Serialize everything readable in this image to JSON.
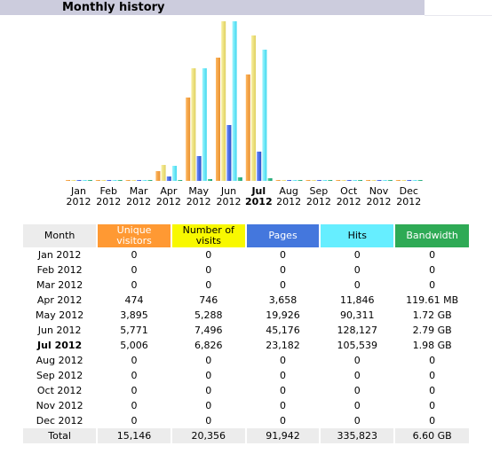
{
  "header": {
    "title": "Monthly history"
  },
  "colors": {
    "unique": [
      "#e89030",
      "#ffb860"
    ],
    "visits": [
      "#e0d060",
      "#f8f0a0"
    ],
    "pages": [
      "#2a50c8",
      "#6a8aff"
    ],
    "hits": [
      "#40d8ee",
      "#a0f6ff"
    ],
    "bandwidth": [
      "#18a070",
      "#50d0a0"
    ]
  },
  "chart_data": {
    "type": "bar",
    "categories": [
      "Jan 2012",
      "Feb 2012",
      "Mar 2012",
      "Apr 2012",
      "May 2012",
      "Jun 2012",
      "Jul 2012",
      "Aug 2012",
      "Sep 2012",
      "Oct 2012",
      "Nov 2012",
      "Dec 2012"
    ],
    "category_lines": [
      [
        "Jan",
        "2012"
      ],
      [
        "Feb",
        "2012"
      ],
      [
        "Mar",
        "2012"
      ],
      [
        "Apr",
        "2012"
      ],
      [
        "May",
        "2012"
      ],
      [
        "Jun",
        "2012"
      ],
      [
        "Jul",
        "2012"
      ],
      [
        "Aug",
        "2012"
      ],
      [
        "Sep",
        "2012"
      ],
      [
        "Oct",
        "2012"
      ],
      [
        "Nov",
        "2012"
      ],
      [
        "Dec",
        "2012"
      ]
    ],
    "current_index": 6,
    "series": [
      {
        "key": "unique",
        "values": [
          0,
          0,
          0,
          474,
          3895,
          5771,
          5006,
          0,
          0,
          0,
          0,
          0
        ]
      },
      {
        "key": "visits",
        "values": [
          0,
          0,
          0,
          746,
          5288,
          7496,
          6826,
          0,
          0,
          0,
          0,
          0
        ]
      },
      {
        "key": "pages",
        "values": [
          0,
          0,
          0,
          3658,
          19926,
          45176,
          23182,
          0,
          0,
          0,
          0,
          0
        ]
      },
      {
        "key": "hits",
        "values": [
          0,
          0,
          0,
          11846,
          90311,
          128127,
          105539,
          0,
          0,
          0,
          0,
          0
        ]
      },
      {
        "key": "bandwidth",
        "values": [
          0,
          0,
          0,
          119.61,
          1720,
          2790,
          1980,
          0,
          0,
          0,
          0,
          0
        ]
      }
    ],
    "scale_groups": {
      "visitors": [
        "unique",
        "visits"
      ],
      "traffic": [
        "pages",
        "hits",
        "bandwidth"
      ]
    }
  },
  "table": {
    "headers": {
      "month": "Month",
      "unique": "Unique visitors",
      "visits": "Number of visits",
      "pages": "Pages",
      "hits": "Hits",
      "bandwidth": "Bandwidth"
    },
    "rows": [
      {
        "month": "Jan 2012",
        "unique": "0",
        "visits": "0",
        "pages": "0",
        "hits": "0",
        "bandwidth": "0"
      },
      {
        "month": "Feb 2012",
        "unique": "0",
        "visits": "0",
        "pages": "0",
        "hits": "0",
        "bandwidth": "0"
      },
      {
        "month": "Mar 2012",
        "unique": "0",
        "visits": "0",
        "pages": "0",
        "hits": "0",
        "bandwidth": "0"
      },
      {
        "month": "Apr 2012",
        "unique": "474",
        "visits": "746",
        "pages": "3,658",
        "hits": "11,846",
        "bandwidth": "119.61 MB"
      },
      {
        "month": "May 2012",
        "unique": "3,895",
        "visits": "5,288",
        "pages": "19,926",
        "hits": "90,311",
        "bandwidth": "1.72 GB"
      },
      {
        "month": "Jun 2012",
        "unique": "5,771",
        "visits": "7,496",
        "pages": "45,176",
        "hits": "128,127",
        "bandwidth": "2.79 GB"
      },
      {
        "month": "Jul 2012",
        "unique": "5,006",
        "visits": "6,826",
        "pages": "23,182",
        "hits": "105,539",
        "bandwidth": "1.98 GB",
        "current": true
      },
      {
        "month": "Aug 2012",
        "unique": "0",
        "visits": "0",
        "pages": "0",
        "hits": "0",
        "bandwidth": "0"
      },
      {
        "month": "Sep 2012",
        "unique": "0",
        "visits": "0",
        "pages": "0",
        "hits": "0",
        "bandwidth": "0"
      },
      {
        "month": "Oct 2012",
        "unique": "0",
        "visits": "0",
        "pages": "0",
        "hits": "0",
        "bandwidth": "0"
      },
      {
        "month": "Nov 2012",
        "unique": "0",
        "visits": "0",
        "pages": "0",
        "hits": "0",
        "bandwidth": "0"
      },
      {
        "month": "Dec 2012",
        "unique": "0",
        "visits": "0",
        "pages": "0",
        "hits": "0",
        "bandwidth": "0"
      }
    ],
    "total": {
      "month": "Total",
      "unique": "15,146",
      "visits": "20,356",
      "pages": "91,942",
      "hits": "335,823",
      "bandwidth": "6.60 GB"
    }
  }
}
